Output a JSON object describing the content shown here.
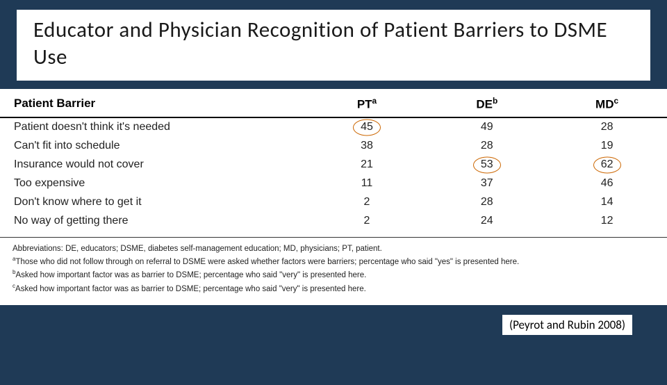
{
  "title": "Educator and Physician Recognition of Patient Barriers to DSME Use",
  "columns": {
    "c0": "Patient Barrier",
    "c1": "PT",
    "c1_sup": "a",
    "c2": "DE",
    "c2_sup": "b",
    "c3": "MD",
    "c3_sup": "c"
  },
  "rows": [
    {
      "barrier": "Patient doesn't think it's needed",
      "pt": "45",
      "de": "49",
      "md": "28",
      "circle_pt": true,
      "circle_de": false,
      "circle_md": false
    },
    {
      "barrier": "Can't fit into schedule",
      "pt": "38",
      "de": "28",
      "md": "19",
      "circle_pt": false,
      "circle_de": false,
      "circle_md": false
    },
    {
      "barrier": "Insurance would not cover",
      "pt": "21",
      "de": "53",
      "md": "62",
      "circle_pt": false,
      "circle_de": true,
      "circle_md": true
    },
    {
      "barrier": "Too expensive",
      "pt": "11",
      "de": "37",
      "md": "46",
      "circle_pt": false,
      "circle_de": false,
      "circle_md": false
    },
    {
      "barrier": "Don't know where to get it",
      "pt": "2",
      "de": "28",
      "md": "14",
      "circle_pt": false,
      "circle_de": false,
      "circle_md": false
    },
    {
      "barrier": "No way of getting there",
      "pt": "2",
      "de": "24",
      "md": "12",
      "circle_pt": false,
      "circle_de": false,
      "circle_md": false
    }
  ],
  "footnotes": {
    "abbrev": "Abbreviations: DE, educators; DSME, diabetes self-management education; MD, physicians; PT, patient.",
    "a_sup": "a",
    "a": "Those who did not follow through on referral to DSME were asked whether factors were barriers; percentage who said \"yes\" is presented here.",
    "b_sup": "b",
    "b": "Asked how important factor was as barrier to DSME; percentage who said \"very\" is presented here.",
    "c_sup": "c",
    "c": "Asked how important factor was as barrier to DSME; percentage who said \"very\" is presented here."
  },
  "citation": "(Peyrot and Rubin 2008)",
  "style": {
    "page_bg": "#1f3a56",
    "panel_bg": "#ffffff",
    "text_color": "#1a1a1a",
    "header_border": "#000000",
    "footnote_border": "#333333",
    "circle_color": "#cc6600",
    "title_fontsize": 31,
    "header_fontsize": 17,
    "cell_fontsize": 16,
    "footnote_fontsize": 11.5,
    "col_widths_pct": [
      46,
      18,
      18,
      18
    ]
  }
}
